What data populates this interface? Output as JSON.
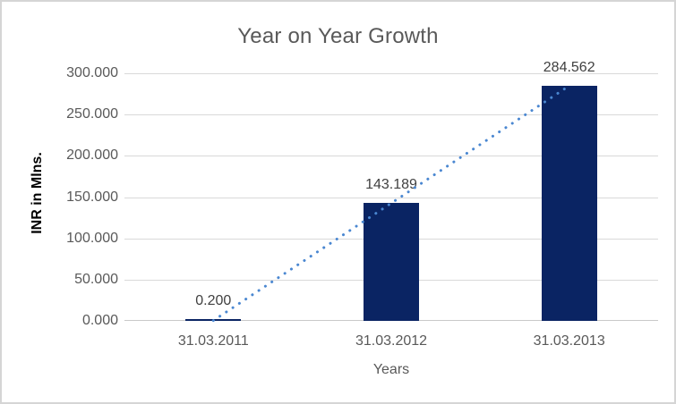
{
  "chart_data": {
    "type": "bar",
    "title": "Year on Year Growth",
    "xlabel": "Years",
    "ylabel": "INR in Mlns.",
    "categories": [
      "31.03.2011",
      "31.03.2012",
      "31.03.2013"
    ],
    "values": [
      0.2,
      143.189,
      284.562
    ],
    "data_labels": [
      "0.200",
      "143.189",
      "284.562"
    ],
    "ylim": [
      0,
      300
    ],
    "ytick_labels": [
      "0.000",
      "50.000",
      "100.000",
      "150.000",
      "200.000",
      "250.000",
      "300.000"
    ],
    "grid": true,
    "legend": "none",
    "trendline": {
      "type": "linear",
      "style": "dotted"
    },
    "colors": {
      "bar": "#0a2463",
      "trendline": "#4a87d1",
      "gridline": "#d9d9d9",
      "axis_line": "#c9c9c9",
      "border": "#d5d5d5",
      "background": "#ffffff",
      "title_text": "#595959",
      "tick_text": "#595959",
      "x_axis_title_text": "#595959",
      "y_axis_title_text": "#000000",
      "data_label_text": "#404040"
    }
  }
}
